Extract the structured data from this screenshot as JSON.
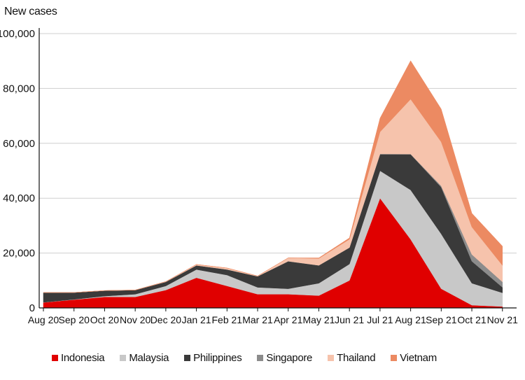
{
  "chart_data": {
    "type": "area",
    "ylabel": "New cases",
    "ylim": [
      0,
      100000
    ],
    "y_ticks": [
      "0",
      "20,000",
      "40,000",
      "60,000",
      "80,000",
      "100,000"
    ],
    "y_tick_values": [
      0,
      20000,
      40000,
      60000,
      80000,
      100000
    ],
    "x": [
      "Aug 20",
      "Sep 20",
      "Oct 20",
      "Nov 20",
      "Dec 20",
      "Jan 21",
      "Feb 21",
      "Mar 21",
      "Apr 21",
      "May 21",
      "Jun 21",
      "Jul 21",
      "Aug 21",
      "Sep 21",
      "Oct 21",
      "Nov 21"
    ],
    "stacked": true,
    "grid": "horizontal",
    "legend_position": "bottom",
    "series": [
      {
        "name": "Indonesia",
        "color": "#e00000",
        "values": [
          2000,
          3000,
          4000,
          4000,
          6500,
          11000,
          8000,
          5000,
          5000,
          4500,
          10000,
          40000,
          25000,
          7000,
          1000,
          500
        ]
      },
      {
        "name": "Malaysia",
        "color": "#c8c8c8",
        "values": [
          50,
          100,
          300,
          1000,
          1500,
          3000,
          4000,
          2500,
          2000,
          4500,
          6000,
          10000,
          18000,
          20000,
          8000,
          5000
        ]
      },
      {
        "name": "Philippines",
        "color": "#3a3a3a",
        "values": [
          3500,
          2500,
          2000,
          1500,
          1500,
          1500,
          2000,
          4000,
          10000,
          6500,
          6000,
          6000,
          13000,
          17000,
          8000,
          2000
        ]
      },
      {
        "name": "Singapore",
        "color": "#8c8c8c",
        "values": [
          50,
          20,
          10,
          10,
          10,
          20,
          20,
          20,
          30,
          30,
          20,
          150,
          100,
          500,
          2500,
          2000
        ]
      },
      {
        "name": "Thailand",
        "color": "#f6c3ac",
        "values": [
          10,
          10,
          10,
          10,
          100,
          300,
          500,
          100,
          1200,
          2500,
          3000,
          8000,
          20000,
          16000,
          10000,
          6000
        ]
      },
      {
        "name": "Vietnam",
        "color": "#ec8a62",
        "values": [
          20,
          10,
          5,
          5,
          5,
          50,
          50,
          30,
          20,
          200,
          500,
          5000,
          14000,
          12000,
          5000,
          7000
        ]
      }
    ]
  }
}
